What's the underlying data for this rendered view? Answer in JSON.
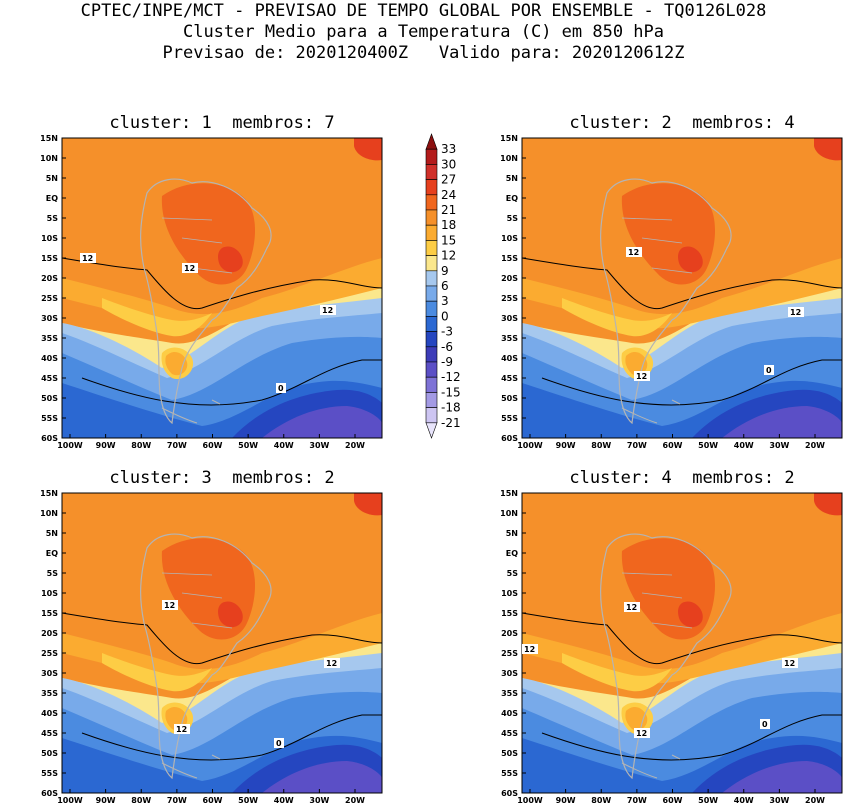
{
  "header": {
    "line1": "CPTEC/INPE/MCT - PREVISAO DE TEMPO GLOBAL POR ENSEMBLE - TQ0126L028",
    "line2": "Cluster Medio para a Temperatura (C) em 850 hPa",
    "line3": "Previsao de: 2020120400Z   Valido para: 2020120612Z"
  },
  "panels": [
    {
      "title": "cluster: 1  membros: 7",
      "contour_labels": [
        "12",
        "12",
        "12",
        "0"
      ]
    },
    {
      "title": "cluster: 2  membros: 4",
      "contour_labels": [
        "12",
        "12",
        "12",
        "0"
      ]
    },
    {
      "title": "cluster: 3  membros: 2",
      "contour_labels": [
        "12",
        "12",
        "12",
        "0"
      ]
    },
    {
      "title": "cluster: 4  membros: 2",
      "contour_labels": [
        "12",
        "12",
        "12",
        "12",
        "0"
      ]
    }
  ],
  "lat_labels": [
    "15N",
    "10N",
    "5N",
    "EQ",
    "5S",
    "10S",
    "15S",
    "20S",
    "25S",
    "30S",
    "35S",
    "40S",
    "45S",
    "50S",
    "55S",
    "60S"
  ],
  "lon_labels": [
    "100W",
    "90W",
    "80W",
    "70W",
    "60W",
    "50W",
    "40W",
    "30W",
    "20W"
  ],
  "colorbar": {
    "labels": [
      "33",
      "30",
      "27",
      "24",
      "21",
      "18",
      "15",
      "12",
      "9",
      "6",
      "3",
      "0",
      "-3",
      "-6",
      "-9",
      "-12",
      "-15",
      "-18",
      "-21"
    ],
    "colors": [
      "#8c1010",
      "#b31b1b",
      "#d0302a",
      "#e6401e",
      "#f0661e",
      "#f5902a",
      "#fbab30",
      "#fdcd45",
      "#fbe78c",
      "#a6c8ee",
      "#78aaea",
      "#4b8be0",
      "#2b68d2",
      "#2546c0",
      "#3d3cb8",
      "#5b4fc6",
      "#7e72d6",
      "#a39ae4",
      "#cdc5f2",
      "#e8e4fb"
    ]
  },
  "colors": {
    "warm_core": "#f0661e",
    "warm": "#f5902a",
    "mild": "#fbab30",
    "light": "#fdcd45",
    "pale": "#fbe78c",
    "cool1": "#a6c8ee",
    "cool2": "#78aaea",
    "cool3": "#4b8be0",
    "cold1": "#2b68d2",
    "cold2": "#2546c0",
    "cold3": "#5b4fc6",
    "coast": "#b4b4b4"
  }
}
